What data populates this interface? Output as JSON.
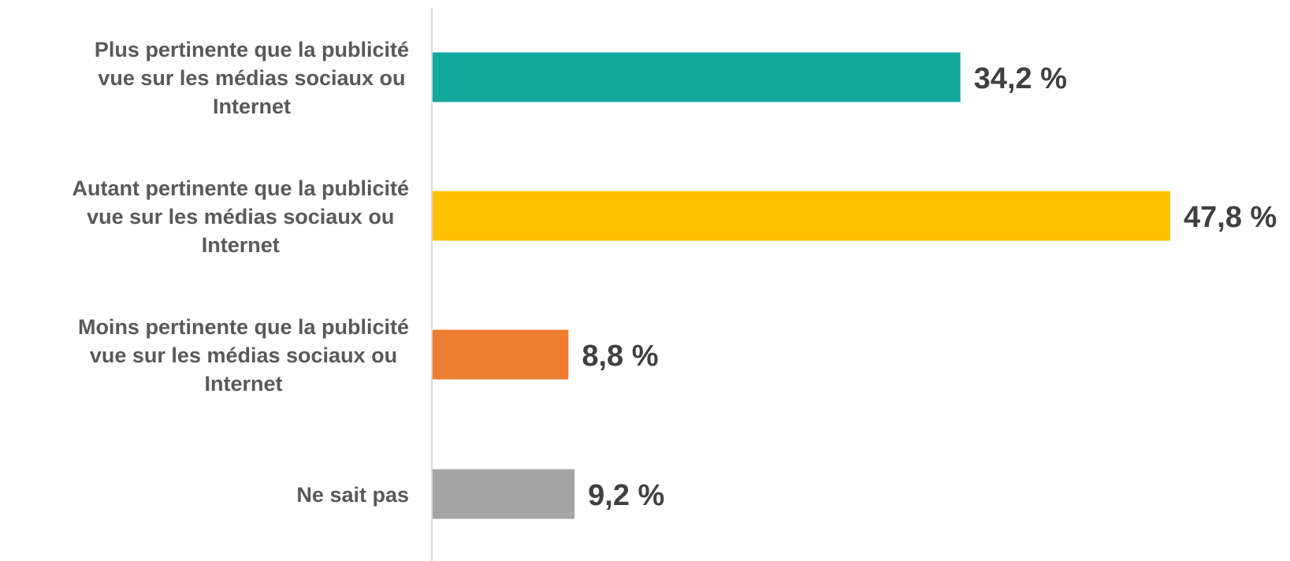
{
  "chart_data": {
    "type": "bar",
    "orientation": "horizontal",
    "categories": [
      [
        "Plus pertinente que la publicité",
        "vue sur les médias sociaux ou",
        "Internet"
      ],
      [
        "Autant pertinente que la publicité",
        "vue sur les médias sociaux ou",
        "Internet"
      ],
      [
        "Moins pertinente que la publicité",
        "vue sur les médias sociaux ou",
        "Internet"
      ],
      [
        "Ne sait pas"
      ]
    ],
    "values": [
      34.2,
      47.8,
      8.8,
      9.2
    ],
    "value_labels": [
      "34,2 %",
      "47,8 %",
      "8,8 %",
      "9,2 %"
    ],
    "colors": [
      "#13A89E",
      "#FFC000",
      "#ED7D31",
      "#A5A5A5"
    ],
    "title": "",
    "xlabel": "",
    "ylabel": "",
    "xlim": [
      0,
      47.8
    ],
    "grid": false,
    "legend": "none"
  }
}
